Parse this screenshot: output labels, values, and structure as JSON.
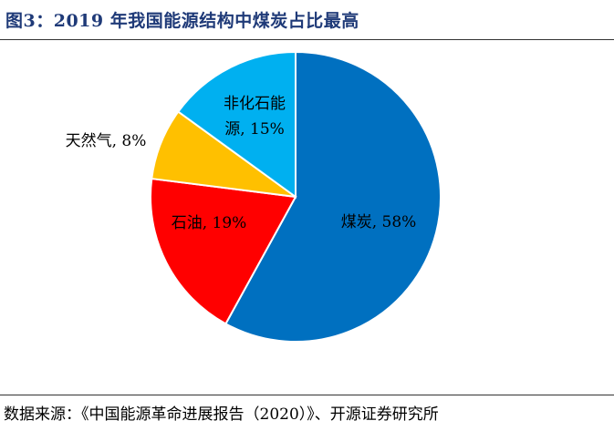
{
  "header": {
    "title": "图3：2019 年我国能源结构中煤炭占比最高"
  },
  "footer": {
    "source": "数据来源：《中国能源革命进展报告（2020）》、开源证券研究所"
  },
  "chart_data": {
    "type": "pie",
    "title": "图3：2019 年我国能源结构中煤炭占比最高",
    "slices": [
      {
        "name": "煤炭",
        "value": 58,
        "label": "煤炭, 58%",
        "color": "#0070C0"
      },
      {
        "name": "石油",
        "value": 19,
        "label": "石油, 19%",
        "color": "#FF0000"
      },
      {
        "name": "天然气",
        "value": 8,
        "label": "天然气, 8%",
        "color": "#FFC000"
      },
      {
        "name": "非化石能源",
        "value": 15,
        "label_lines": [
          "非化石能",
          "源, 15%"
        ],
        "color": "#00B0F0"
      }
    ],
    "legend": "none"
  }
}
